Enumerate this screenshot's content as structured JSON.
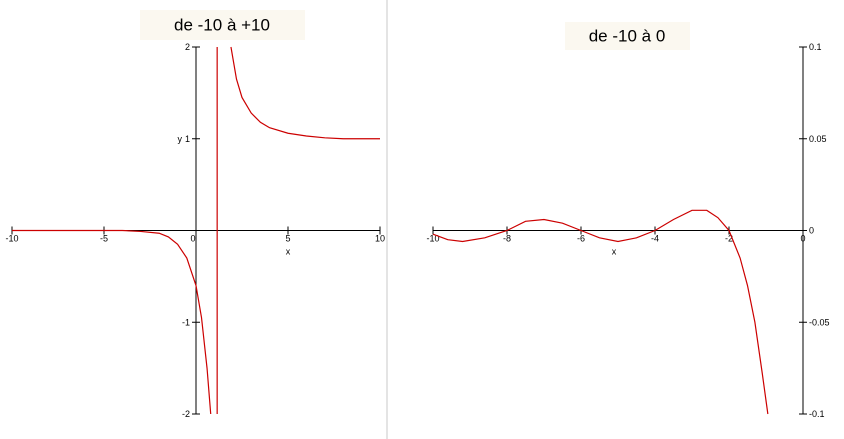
{
  "chart_data": [
    {
      "type": "line",
      "title": "de -10 à +10",
      "xlabel": "x",
      "ylabel": "y",
      "x": [
        -10,
        -8,
        -6,
        -4,
        -3,
        -2,
        -1.5,
        -1,
        -0.5,
        0,
        0.3,
        0.6,
        0.8,
        null,
        1.15,
        1.15,
        null,
        1.9,
        2.2,
        2.5,
        3,
        3.5,
        4,
        5,
        6,
        7,
        8,
        10
      ],
      "series": [
        {
          "color": "#cc0000",
          "values": [
            0,
            0,
            0,
            0,
            -0.01,
            -0.03,
            -0.07,
            -0.15,
            -0.3,
            -0.6,
            -0.95,
            -1.5,
            -2,
            null,
            -2,
            2,
            null,
            2,
            1.65,
            1.45,
            1.28,
            1.18,
            1.12,
            1.06,
            1.03,
            1.01,
            1.0,
            1.0
          ]
        }
      ],
      "xlim": [
        -10,
        10
      ],
      "ylim": [
        -2,
        2
      ],
      "xticks": [
        -10,
        -5,
        0,
        5,
        10
      ],
      "yticks": [
        -2,
        -1,
        1,
        2
      ]
    },
    {
      "type": "line",
      "title": "de -10 à 0",
      "xlabel": "x",
      "x": [
        -10,
        -9.6,
        -9.2,
        -8.6,
        -8,
        -7.5,
        -7,
        -6.5,
        -6,
        -5.5,
        -5,
        -4.5,
        -4,
        -3.5,
        -3,
        -2.6,
        -2.3,
        -2,
        -1.7,
        -1.5,
        -1.3,
        -1.1,
        -0.95
      ],
      "series": [
        {
          "color": "#cc0000",
          "values": [
            -0.002,
            -0.005,
            -0.006,
            -0.004,
            0,
            0.005,
            0.006,
            0.004,
            0,
            -0.004,
            -0.006,
            -0.004,
            0,
            0.006,
            0.011,
            0.011,
            0.007,
            0,
            -0.015,
            -0.03,
            -0.05,
            -0.078,
            -0.1
          ]
        }
      ],
      "xlim": [
        -10,
        0
      ],
      "ylim": [
        -0.1,
        0.1
      ],
      "xticks": [
        -10,
        -8,
        -6,
        -4,
        -2,
        0
      ],
      "yticks": [
        -0.1,
        -0.05,
        0,
        0.05,
        0.1
      ]
    }
  ]
}
